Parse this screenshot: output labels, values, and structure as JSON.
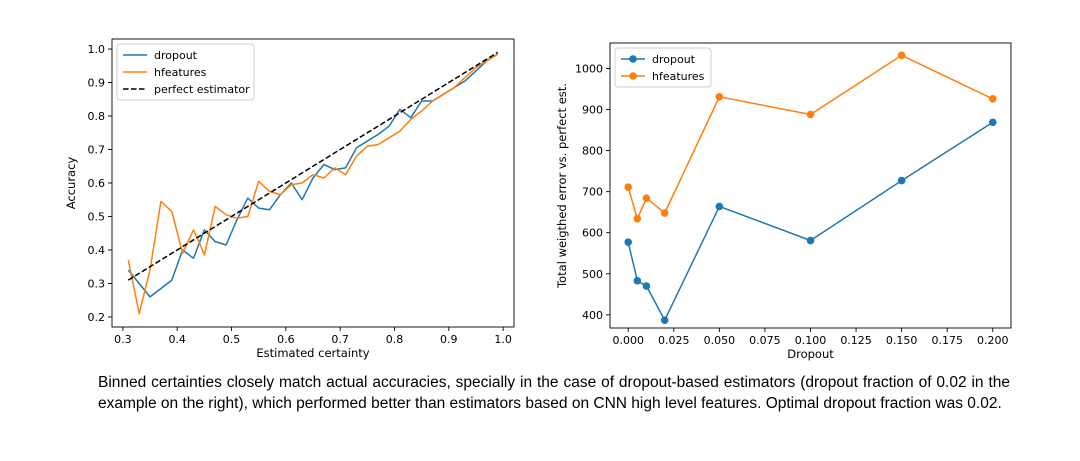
{
  "chart_data": [
    {
      "type": "line",
      "xlabel": "Estimated certainty",
      "ylabel": "Accuracy",
      "xlim": [
        0.28,
        1.02
      ],
      "ylim": [
        0.17,
        1.03
      ],
      "xticks": [
        0.3,
        0.4,
        0.5,
        0.6,
        0.7,
        0.8,
        0.9,
        1.0
      ],
      "xtick_labels": [
        "0.3",
        "0.4",
        "0.5",
        "0.6",
        "0.7",
        "0.8",
        "0.9",
        "1.0"
      ],
      "yticks": [
        0.2,
        0.3,
        0.4,
        0.5,
        0.6,
        0.7,
        0.8,
        0.9,
        1.0
      ],
      "ytick_labels": [
        "0.2",
        "0.3",
        "0.4",
        "0.5",
        "0.6",
        "0.7",
        "0.8",
        "0.9",
        "1.0"
      ],
      "legend_position": "upper-left",
      "series": [
        {
          "name": "dropout",
          "color": "#1f77b4",
          "style": "solid",
          "x": [
            0.31,
            0.33,
            0.35,
            0.37,
            0.39,
            0.41,
            0.43,
            0.45,
            0.47,
            0.49,
            0.51,
            0.53,
            0.55,
            0.57,
            0.59,
            0.61,
            0.63,
            0.65,
            0.67,
            0.69,
            0.71,
            0.73,
            0.75,
            0.77,
            0.79,
            0.81,
            0.83,
            0.85,
            0.87,
            0.89,
            0.91,
            0.93,
            0.95,
            0.97,
            0.99
          ],
          "y": [
            0.34,
            0.3,
            0.26,
            0.285,
            0.31,
            0.4,
            0.375,
            0.46,
            0.425,
            0.415,
            0.49,
            0.555,
            0.525,
            0.52,
            0.565,
            0.6,
            0.55,
            0.615,
            0.655,
            0.64,
            0.645,
            0.705,
            0.725,
            0.745,
            0.77,
            0.82,
            0.795,
            0.845,
            0.845,
            0.865,
            0.885,
            0.905,
            0.935,
            0.965,
            0.985
          ]
        },
        {
          "name": "hfeatures",
          "color": "#ff7f0e",
          "style": "solid",
          "x": [
            0.31,
            0.33,
            0.35,
            0.37,
            0.39,
            0.41,
            0.43,
            0.44,
            0.45,
            0.47,
            0.49,
            0.51,
            0.53,
            0.55,
            0.57,
            0.59,
            0.61,
            0.63,
            0.65,
            0.67,
            0.69,
            0.71,
            0.73,
            0.75,
            0.77,
            0.79,
            0.81,
            0.83,
            0.85,
            0.87,
            0.89,
            0.91,
            0.93,
            0.95,
            0.97,
            0.99
          ],
          "y": [
            0.37,
            0.21,
            0.34,
            0.545,
            0.515,
            0.39,
            0.46,
            0.425,
            0.385,
            0.53,
            0.505,
            0.495,
            0.5,
            0.605,
            0.575,
            0.565,
            0.595,
            0.6,
            0.625,
            0.615,
            0.645,
            0.625,
            0.68,
            0.71,
            0.715,
            0.735,
            0.755,
            0.79,
            0.815,
            0.845,
            0.865,
            0.885,
            0.915,
            0.945,
            0.965,
            0.985
          ]
        },
        {
          "name": "perfect estimator",
          "color": "#000000",
          "style": "dashed",
          "x": [
            0.31,
            0.99
          ],
          "y": [
            0.31,
            0.99
          ]
        }
      ]
    },
    {
      "type": "line",
      "xlabel": "Dropout",
      "ylabel": "Total weigthed error vs. perfect est.",
      "xlim": [
        -0.01,
        0.21
      ],
      "ylim": [
        368,
        1062
      ],
      "xticks": [
        0.0,
        0.025,
        0.05,
        0.075,
        0.1,
        0.125,
        0.15,
        0.175,
        0.2
      ],
      "xtick_labels": [
        "0.000",
        "0.025",
        "0.050",
        "0.075",
        "0.100",
        "0.125",
        "0.150",
        "0.175",
        "0.200"
      ],
      "yticks": [
        400,
        500,
        600,
        700,
        800,
        900,
        1000
      ],
      "ytick_labels": [
        "400",
        "500",
        "600",
        "700",
        "800",
        "900",
        "1000"
      ],
      "legend_position": "upper-left",
      "markers": true,
      "series": [
        {
          "name": "dropout",
          "color": "#1f77b4",
          "style": "solid",
          "x": [
            0.0,
            0.005,
            0.01,
            0.02,
            0.05,
            0.1,
            0.15,
            0.2
          ],
          "y": [
            577,
            483,
            470,
            387,
            664,
            581,
            727,
            869
          ]
        },
        {
          "name": "hfeatures",
          "color": "#ff7f0e",
          "style": "solid",
          "x": [
            0.0,
            0.005,
            0.01,
            0.02,
            0.05,
            0.1,
            0.15,
            0.2
          ],
          "y": [
            711,
            634,
            684,
            648,
            931,
            888,
            1032,
            926
          ]
        }
      ]
    }
  ],
  "caption": "Binned certainties closely match actual accuracies, specially in the case of dropout-based estimators (dropout fraction of 0.02 in the example on the right), which performed better than estimators based on CNN high level features. Optimal dropout fraction was 0.02."
}
